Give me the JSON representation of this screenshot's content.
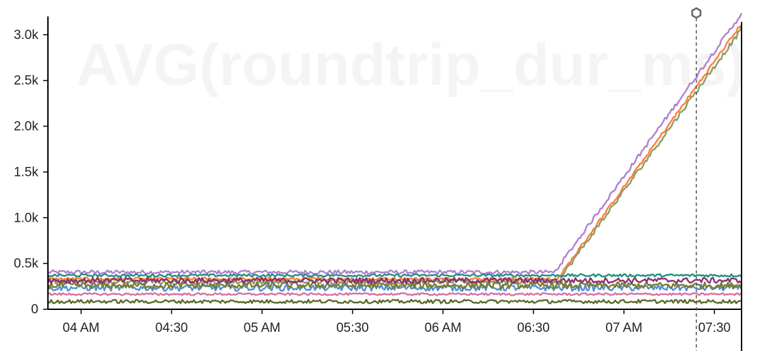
{
  "chart_data": {
    "type": "line",
    "title": "AVG(roundtrip_dur_ms)",
    "x_ticks": [
      "04 AM",
      "04:30",
      "05 AM",
      "05:30",
      "06 AM",
      "06:30",
      "07 AM",
      "07:30"
    ],
    "x_tick_minutes": [
      0,
      30,
      60,
      90,
      120,
      150,
      180,
      210
    ],
    "xlim_minutes": [
      -11,
      219
    ],
    "y_ticks": [
      "0",
      "0.5k",
      "1.0k",
      "1.5k",
      "2.0k",
      "2.5k",
      "3.0k"
    ],
    "y_tick_values": [
      0,
      500,
      1000,
      1500,
      2000,
      2500,
      3000
    ],
    "ylim": [
      0,
      3200
    ],
    "grid": false,
    "legend": "none",
    "cursor_minute": 204,
    "series": [
      {
        "color": "#b07fd0",
        "base": 405,
        "noise": 22,
        "ramp_start": 157,
        "ramp_end": 219,
        "ramp_to": 3230
      },
      {
        "color": "#ff7f32",
        "base": 330,
        "noise": 18,
        "ramp_start": 158,
        "ramp_end": 219,
        "ramp_to": 3120
      },
      {
        "color": "#8d9a6a",
        "base": 300,
        "noise": 25,
        "ramp_start": 158,
        "ramp_end": 219,
        "ramp_to": 3060
      },
      {
        "color": "#1f8f7f",
        "base": 370,
        "noise": 15
      },
      {
        "color": "#4f8fd8",
        "base": 235,
        "noise": 35
      },
      {
        "color": "#7a7e2a",
        "base": 260,
        "noise": 35
      },
      {
        "color": "#8c2f6e",
        "base": 315,
        "noise": 30
      },
      {
        "color": "#d96fa0",
        "base": 165,
        "noise": 12
      },
      {
        "color": "#5a6a2a",
        "base": 85,
        "noise": 20
      }
    ]
  }
}
